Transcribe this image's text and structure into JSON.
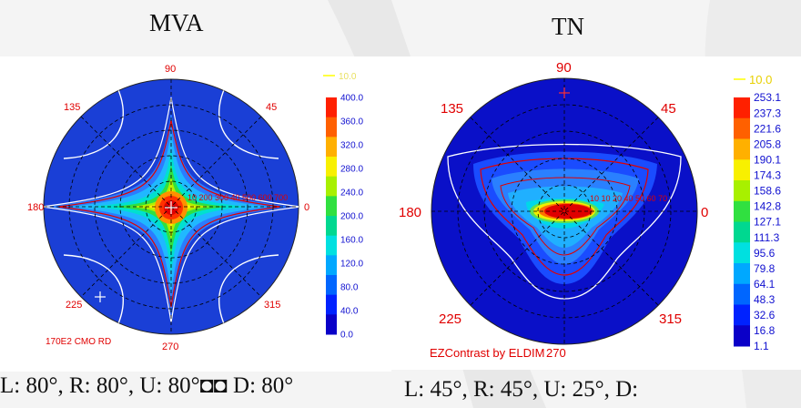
{
  "colors": {
    "plot_background": "#ffffff",
    "disk_blue": "#1a3fd6",
    "label_red": "#e00000",
    "contour_white": "#ffffff",
    "contour_red": "#e00000",
    "highlight_yellow": "#ffff40"
  },
  "colorscale": [
    "#0a00c8",
    "#0022ff",
    "#0066ff",
    "#00a8ff",
    "#00e0e0",
    "#00d890",
    "#30e040",
    "#a8f000",
    "#f8f000",
    "#ffb000",
    "#ff6000",
    "#ff2000"
  ],
  "left": {
    "title": "MVA",
    "angle_labels": {
      "a90": "90",
      "a45": "45",
      "a135": "135",
      "a0": "0",
      "a180": "180",
      "a225": "225",
      "a270": "270",
      "a315": "315"
    },
    "legend_marker": "10.0",
    "scale_ticks": [
      "400.0",
      "360.0",
      "320.0",
      "280.0",
      "240.0",
      "200.0",
      "160.0",
      "120.0",
      "80.0",
      "40.0",
      "0.0"
    ],
    "contour_label": "10 200 300 40 500 600 700",
    "footer": "170E2 CMO RD",
    "caption": "L: 80°, R: 80°, U: 80°◘◘ D: 80°"
  },
  "right": {
    "title": "TN",
    "angle_labels": {
      "a90": "90",
      "a45": "45",
      "a135": "135",
      "a0": "0",
      "a180": "180",
      "a225": "225",
      "a315": "315"
    },
    "legend_marker": "10.0",
    "scale_ticks": [
      "253.1",
      "237.3",
      "221.6",
      "205.8",
      "190.1",
      "174.3",
      "158.6",
      "142.8",
      "127.1",
      "111.3",
      "95.6",
      "79.8",
      "64.1",
      "48.3",
      "32.6",
      "16.8",
      "1.1"
    ],
    "contour_label": "10 10 20 40 50 60 70",
    "footer": "EZContrast by ELDIM",
    "footer_overlap": "270",
    "caption": "L: 45°, R: 45°, U: 25°, D:"
  }
}
